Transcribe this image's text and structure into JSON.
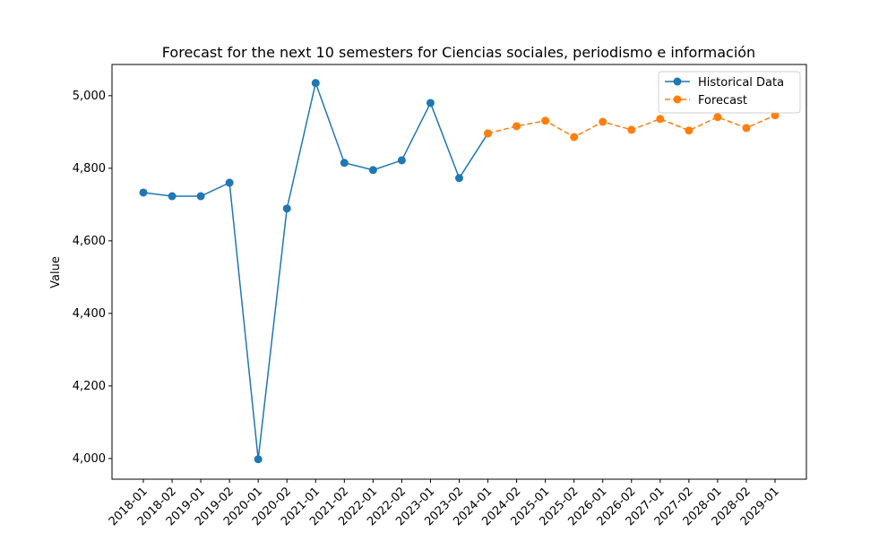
{
  "chart_data": {
    "type": "line",
    "title": "Forecast for the next 10 semesters for Ciencias sociales, periodismo e información",
    "y_label": "Value",
    "categories": [
      "2018-01",
      "2018-02",
      "2019-01",
      "2019-02",
      "2020-01",
      "2020-02",
      "2021-01",
      "2021-02",
      "2022-01",
      "2022-02",
      "2023-01",
      "2023-02",
      "2024-01",
      "2024-02",
      "2025-01",
      "2025-02",
      "2026-01",
      "2026-02",
      "2027-01",
      "2027-02",
      "2028-01",
      "2028-02",
      "2029-01"
    ],
    "series": [
      {
        "name": "Historical Data",
        "color": "#1f77b4",
        "linestyle": "solid",
        "values": [
          4733,
          4723,
          4723,
          4760,
          3998,
          4689,
          5035,
          4815,
          4795,
          4822,
          4980,
          4773,
          4896,
          null,
          null,
          null,
          null,
          null,
          null,
          null,
          null,
          null,
          null
        ]
      },
      {
        "name": "Forecast",
        "color": "#ff7f0e",
        "linestyle": "dashed",
        "values": [
          null,
          null,
          null,
          null,
          null,
          null,
          null,
          null,
          null,
          null,
          null,
          null,
          4896,
          4916,
          4931,
          4886,
          4928,
          4906,
          4936,
          4904,
          4941,
          4911,
          4946
        ]
      }
    ],
    "ylim": [
      3943,
      5086
    ],
    "yticks": [
      {
        "value": 4000,
        "label": "4,000"
      },
      {
        "value": 4200,
        "label": "4,200"
      },
      {
        "value": 4400,
        "label": "4,400"
      },
      {
        "value": 4600,
        "label": "4,600"
      },
      {
        "value": 4800,
        "label": "4,800"
      },
      {
        "value": 5000,
        "label": "5,000"
      }
    ],
    "legend": "upper right",
    "grid": false
  }
}
